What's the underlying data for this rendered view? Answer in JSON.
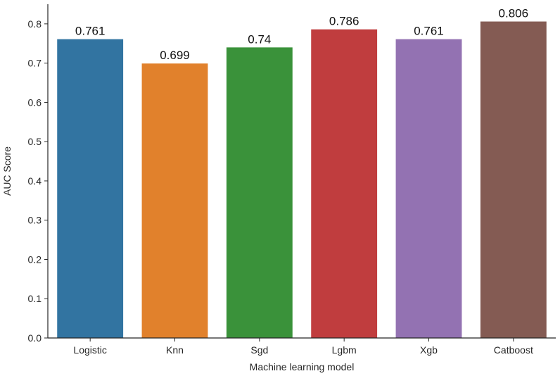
{
  "chart_data": {
    "type": "bar",
    "title": "",
    "xlabel": "Machine learning model",
    "ylabel": "AUC Score",
    "categories": [
      "Logistic",
      "Knn",
      "Sgd",
      "Lgbm",
      "Xgb",
      "Catboost"
    ],
    "values": [
      0.761,
      0.699,
      0.74,
      0.786,
      0.761,
      0.806
    ],
    "value_labels": [
      "0.761",
      "0.699",
      "0.74",
      "0.786",
      "0.761",
      "0.806"
    ],
    "ylim": [
      0,
      0.85
    ],
    "yticks": [
      0.0,
      0.1,
      0.2,
      0.3,
      0.4,
      0.5,
      0.6,
      0.7,
      0.8
    ],
    "ytick_labels": [
      "0.0",
      "0.1",
      "0.2",
      "0.3",
      "0.4",
      "0.5",
      "0.6",
      "0.7",
      "0.8"
    ],
    "colors": [
      "#3274a1",
      "#e1812c",
      "#3a923a",
      "#c03d3e",
      "#9372b2",
      "#845b53"
    ],
    "grid": false,
    "legend": "none"
  }
}
